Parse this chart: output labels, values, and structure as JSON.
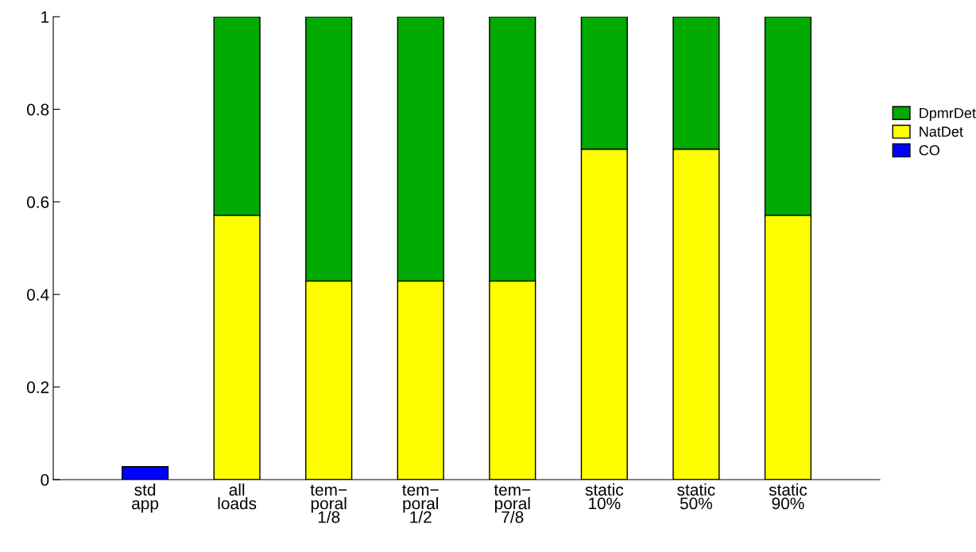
{
  "chart_data": {
    "type": "bar",
    "stacked": true,
    "categories": [
      "std\napp",
      "all\nloads",
      "tem−\nporal\n1/8",
      "tem−\nporal\n1/2",
      "tem−\nporal\n7/8",
      "static\n10%",
      "static\n50%",
      "static\n90%"
    ],
    "series": [
      {
        "name": "CO",
        "color": "#0000ff",
        "values": [
          0.028,
          null,
          null,
          null,
          null,
          null,
          null,
          null
        ]
      },
      {
        "name": "NatDet",
        "color": "#ffff00",
        "values": [
          null,
          0.571,
          0.429,
          0.429,
          0.429,
          0.714,
          0.714,
          0.571
        ]
      },
      {
        "name": "DpmrDet",
        "color": "#00aa00",
        "values": [
          null,
          0.429,
          0.571,
          0.571,
          0.571,
          0.286,
          0.286,
          0.429
        ]
      }
    ],
    "ylim": [
      0,
      1
    ],
    "yticks": [
      0,
      0.2,
      0.4,
      0.6,
      0.8,
      1
    ],
    "grid": false,
    "legend": "right"
  }
}
